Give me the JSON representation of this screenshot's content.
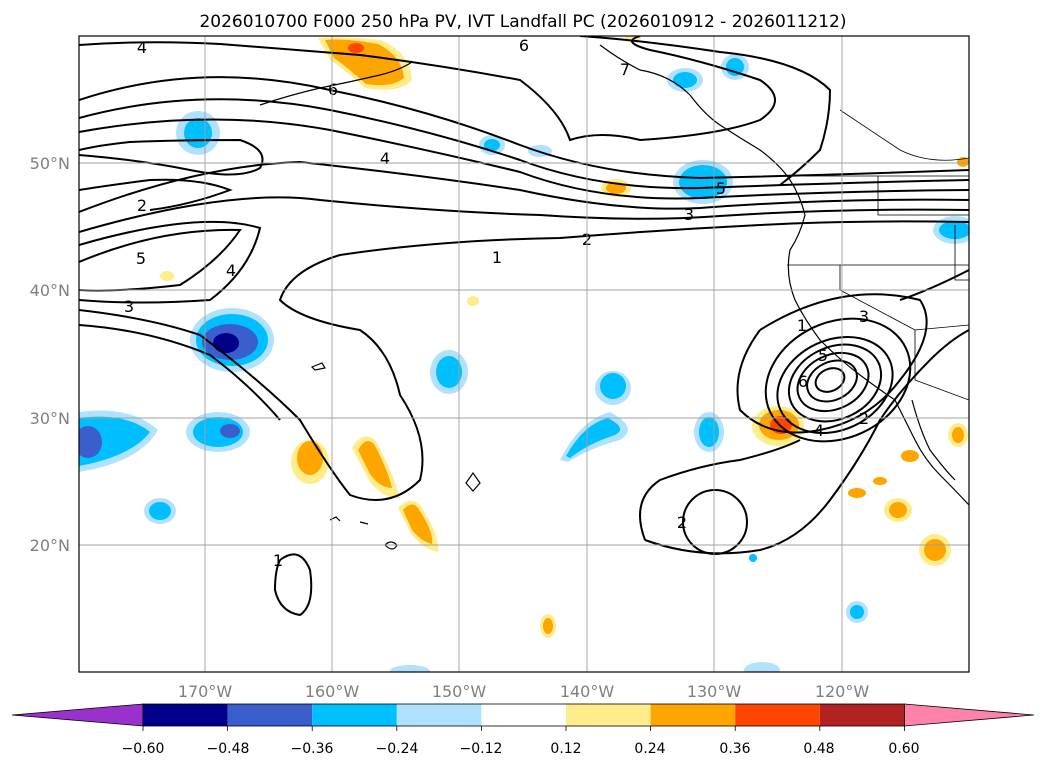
{
  "title": "2026010700 F000 250 hPa PV, IVT Landfall PC (2026010912 - 2026011212)",
  "lat_labels": [
    "50°N",
    "40°N",
    "30°N",
    "20°N"
  ],
  "lon_labels": [
    "170°W",
    "160°W",
    "150°W",
    "140°W",
    "130°W",
    "120°W"
  ],
  "colorbar": {
    "ticks": [
      "−0.60",
      "−0.48",
      "−0.36",
      "−0.24",
      "−0.12",
      "0.12",
      "0.24",
      "0.36",
      "0.48",
      "0.60"
    ],
    "colors": [
      "#9932cc",
      "#00008b",
      "#3a5fcd",
      "#00bfff",
      "#b0e2ff",
      "#ffffff",
      "#ffec8b",
      "#ffa500",
      "#ff4500",
      "#b22222",
      "#ff82ab"
    ]
  },
  "contour_labels": [
    "4",
    "6",
    "6",
    "7",
    "4",
    "2",
    "5",
    "3",
    "1",
    "2",
    "3",
    "5",
    "4",
    "1",
    "5",
    "6",
    "3",
    "4",
    "2",
    "2",
    "1"
  ]
}
